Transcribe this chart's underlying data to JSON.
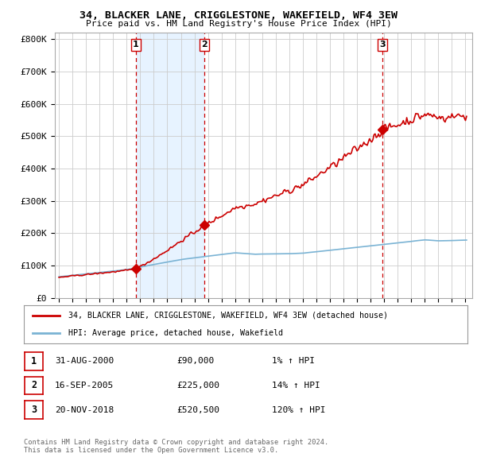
{
  "title": "34, BLACKER LANE, CRIGGLESTONE, WAKEFIELD, WF4 3EW",
  "subtitle": "Price paid vs. HM Land Registry's House Price Index (HPI)",
  "ylabel_ticks": [
    "£0",
    "£100K",
    "£200K",
    "£300K",
    "£400K",
    "£500K",
    "£600K",
    "£700K",
    "£800K"
  ],
  "ytick_vals": [
    0,
    100000,
    200000,
    300000,
    400000,
    500000,
    600000,
    700000,
    800000
  ],
  "ylim": [
    0,
    820000
  ],
  "xlim_start": 1994.7,
  "xlim_end": 2025.5,
  "purchases": [
    {
      "year": 2000.667,
      "price": 90000,
      "label": "1"
    },
    {
      "year": 2005.708,
      "price": 225000,
      "label": "2"
    },
    {
      "year": 2018.892,
      "price": 520500,
      "label": "3"
    }
  ],
  "hpi_color": "#7ab3d4",
  "price_color": "#cc0000",
  "dashed_color": "#cc0000",
  "shade_color": "#ddeeff",
  "legend_label_price": "34, BLACKER LANE, CRIGGLESTONE, WAKEFIELD, WF4 3EW (detached house)",
  "legend_label_hpi": "HPI: Average price, detached house, Wakefield",
  "table_rows": [
    {
      "num": "1",
      "date": "31-AUG-2000",
      "price": "£90,000",
      "change": "1% ↑ HPI"
    },
    {
      "num": "2",
      "date": "16-SEP-2005",
      "price": "£225,000",
      "change": "14% ↑ HPI"
    },
    {
      "num": "3",
      "date": "20-NOV-2018",
      "price": "£520,500",
      "change": "120% ↑ HPI"
    }
  ],
  "footnote": "Contains HM Land Registry data © Crown copyright and database right 2024.\nThis data is licensed under the Open Government Licence v3.0.",
  "background_color": "#ffffff",
  "grid_color": "#cccccc",
  "xtick_years": [
    1995,
    1996,
    1997,
    1998,
    1999,
    2000,
    2001,
    2002,
    2003,
    2004,
    2005,
    2006,
    2007,
    2008,
    2009,
    2010,
    2011,
    2012,
    2013,
    2014,
    2015,
    2016,
    2017,
    2018,
    2019,
    2020,
    2021,
    2022,
    2023,
    2024,
    2025
  ]
}
